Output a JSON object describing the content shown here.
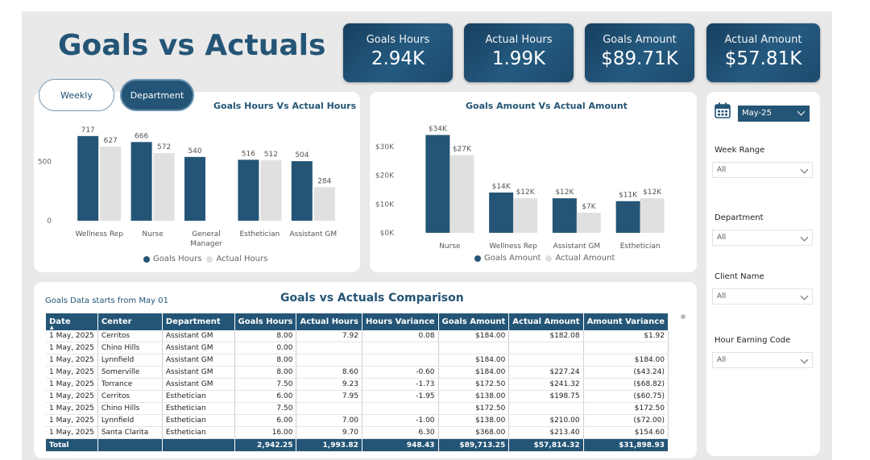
{
  "title": "Goals vs Actuals",
  "kpis": [
    {
      "label": "Goals Hours",
      "value": "2.94K"
    },
    {
      "label": "Actual Hours",
      "value": "1.99K"
    },
    {
      "label": "Goals Amount",
      "value": "$89.71K"
    },
    {
      "label": "Actual Amount",
      "value": "$57.81K"
    }
  ],
  "toggles": {
    "weekly": "Weekly",
    "department": "Department",
    "active": "Department"
  },
  "colors": {
    "primary": "#245576",
    "secondary": "#e0e0e0",
    "background": "#e9e9e9"
  },
  "chart_data": [
    {
      "type": "bar",
      "title": "Goals Hours Vs Actual Hours",
      "categories": [
        "Wellness Rep",
        "Nurse",
        "General Manager",
        "Esthetician",
        "Assistant GM"
      ],
      "category_labels": [
        [
          "Wellness Rep"
        ],
        [
          "Nurse"
        ],
        [
          "General",
          "Manager"
        ],
        [
          "Esthetician"
        ],
        [
          "Assistant GM"
        ]
      ],
      "series": [
        {
          "name": "Goals Hours",
          "values": [
            717,
            666,
            540,
            516,
            504
          ],
          "labels": [
            "717",
            "666",
            "540",
            "516",
            "504"
          ],
          "color": "#245576"
        },
        {
          "name": "Actual Hours",
          "values": [
            627,
            572,
            null,
            512,
            284
          ],
          "labels": [
            "627",
            "572",
            "",
            "512",
            "284"
          ],
          "color": "#e0e0e0"
        }
      ],
      "ylim": [
        0,
        750
      ],
      "yticks": [
        {
          "value": 0,
          "label": "0"
        },
        {
          "value": 500,
          "label": "500"
        }
      ],
      "legend": "bottom"
    },
    {
      "type": "bar",
      "title": "Goals Amount Vs Actual Amount",
      "categories": [
        "Nurse",
        "Wellness Rep",
        "Assistant GM",
        "Esthetician"
      ],
      "category_labels": [
        [
          "Nurse"
        ],
        [
          "Wellness Rep"
        ],
        [
          "Assistant GM"
        ],
        [
          "Esthetician"
        ]
      ],
      "series": [
        {
          "name": "Goals Amount",
          "values": [
            34000,
            14000,
            12000,
            11000
          ],
          "labels": [
            "$34K",
            "$14K",
            "$12K",
            "$11K"
          ],
          "color": "#245576"
        },
        {
          "name": "Actual Amount",
          "values": [
            27000,
            12000,
            7000,
            12000
          ],
          "labels": [
            "$27K",
            "$12K",
            "$7K",
            "$12K"
          ],
          "color": "#e0e0e0"
        }
      ],
      "ylim": [
        0,
        35000
      ],
      "yticks": [
        {
          "value": 0,
          "label": "$0K"
        },
        {
          "value": 10000,
          "label": "$10K"
        },
        {
          "value": 20000,
          "label": "$20K"
        },
        {
          "value": 30000,
          "label": "$30K"
        }
      ],
      "legend": "bottom"
    }
  ],
  "table": {
    "note": "Goals Data starts from May 01",
    "title": "Goals vs Actuals Comparison",
    "columns": [
      "Date",
      "Center",
      "Department",
      "Goals Hours",
      "Actual Hours",
      "Hours Variance",
      "Goals Amount",
      "Actual Amount",
      "Amount Variance"
    ],
    "rows": [
      [
        "1 May, 2025",
        "Cerritos",
        "Assistant GM",
        "8.00",
        "7.92",
        "0.08",
        "$184.00",
        "$182.08",
        "$1.92"
      ],
      [
        "1 May, 2025",
        "Chino Hills",
        "Assistant GM",
        "0.00",
        "",
        "",
        "",
        "",
        ""
      ],
      [
        "1 May, 2025",
        "Lynnfield",
        "Assistant GM",
        "8.00",
        "",
        "",
        "$184.00",
        "",
        "$184.00"
      ],
      [
        "1 May, 2025",
        "Somerville",
        "Assistant GM",
        "8.00",
        "8.60",
        "-0.60",
        "$184.00",
        "$227.24",
        "($43.24)"
      ],
      [
        "1 May, 2025",
        "Torrance",
        "Assistant GM",
        "7.50",
        "9.23",
        "-1.73",
        "$172.50",
        "$241.32",
        "($68.82)"
      ],
      [
        "1 May, 2025",
        "Cerritos",
        "Esthetician",
        "6.00",
        "7.95",
        "-1.95",
        "$138.00",
        "$198.75",
        "($60.75)"
      ],
      [
        "1 May, 2025",
        "Chino Hills",
        "Esthetician",
        "7.50",
        "",
        "",
        "$172.50",
        "",
        "$172.50"
      ],
      [
        "1 May, 2025",
        "Lynnfield",
        "Esthetician",
        "6.00",
        "7.00",
        "-1.00",
        "$138.00",
        "$210.00",
        "($72.00)"
      ],
      [
        "1 May, 2025",
        "Santa Clarita",
        "Esthetician",
        "16.00",
        "9.70",
        "6.30",
        "$368.00",
        "$213.40",
        "$154.60"
      ]
    ],
    "total": [
      "Total",
      "",
      "",
      "2,942.25",
      "1,993.82",
      "948.43",
      "$89,713.25",
      "$57,814.32",
      "$31,898.93"
    ]
  },
  "filters": {
    "month": "May-25",
    "week_range": {
      "label": "Week Range",
      "value": "All"
    },
    "department": {
      "label": "Department",
      "value": "All"
    },
    "client_name": {
      "label": "Client Name",
      "value": "All"
    },
    "hour_earning_code": {
      "label": "Hour Earning Code",
      "value": "All"
    }
  },
  "icons": {
    "calendar": "calendar-icon",
    "dropdown": "chevron-down-icon",
    "sort": "sort-up-icon"
  }
}
